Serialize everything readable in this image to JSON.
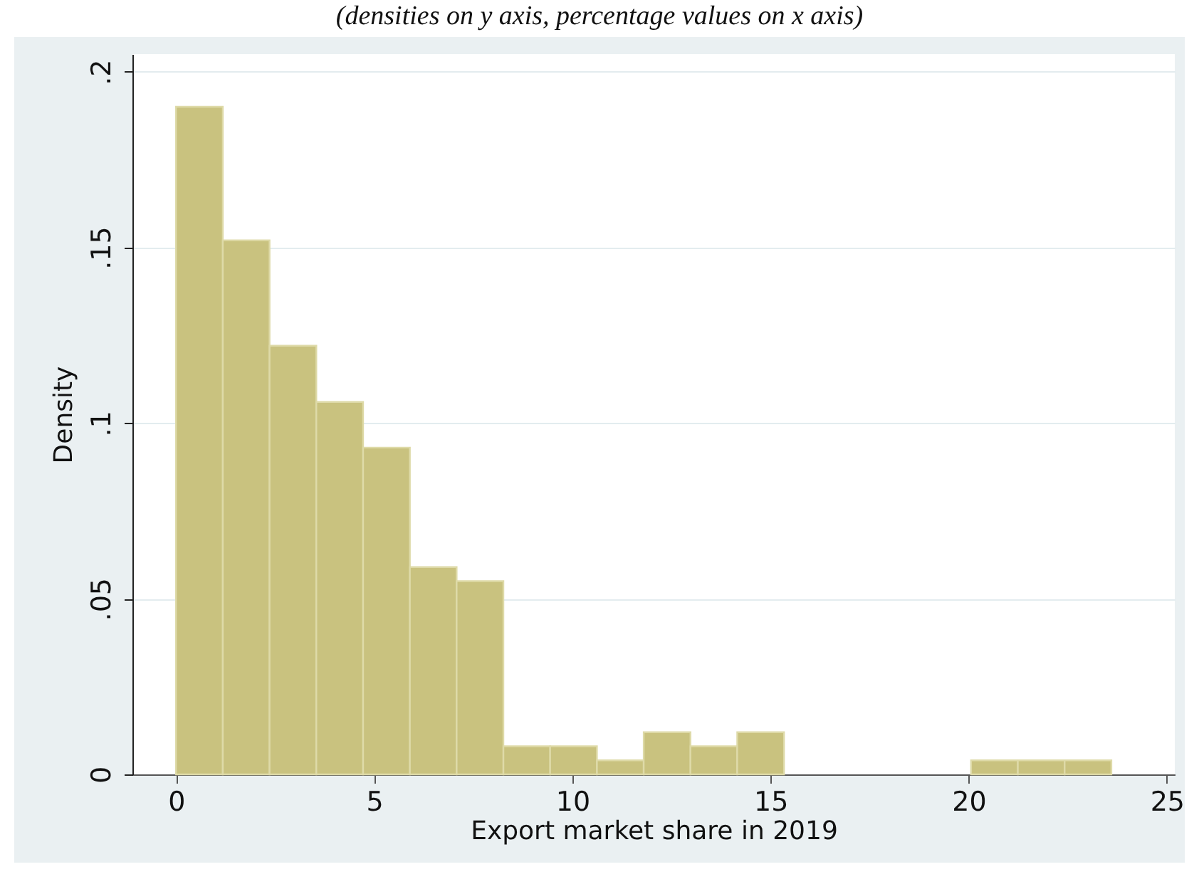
{
  "chart_data": {
    "type": "histogram",
    "title": "(densities on y axis, percentage values on x axis)",
    "xlabel": "Export market share in 2019",
    "ylabel": "Density",
    "bins": [
      0,
      1.18,
      2.36,
      3.54,
      4.72,
      5.9,
      7.08,
      8.26,
      9.44,
      10.62,
      11.8,
      12.98,
      14.16,
      15.34,
      16.52,
      17.7,
      18.88,
      20.06,
      21.24,
      22.42,
      23.6
    ],
    "values": [
      0.19,
      0.152,
      0.122,
      0.106,
      0.093,
      0.059,
      0.055,
      0.008,
      0.008,
      0.004,
      0.012,
      0.008,
      0.012,
      0,
      0,
      0,
      0,
      0.004,
      0.004,
      0.004
    ],
    "color": "#c9c27f",
    "xlim": [
      -1.1,
      25.2
    ],
    "xticks": [
      0,
      5,
      10,
      15,
      20,
      25
    ],
    "ylim": [
      0,
      0.205
    ],
    "yticks": [
      0,
      {
        "value": 0.05,
        "label": ".05"
      },
      {
        "value": 0.1,
        "label": ".1"
      },
      {
        "value": 0.15,
        "label": ".15"
      },
      {
        "value": 0.2,
        "label": ".2"
      }
    ],
    "grid": "y"
  }
}
